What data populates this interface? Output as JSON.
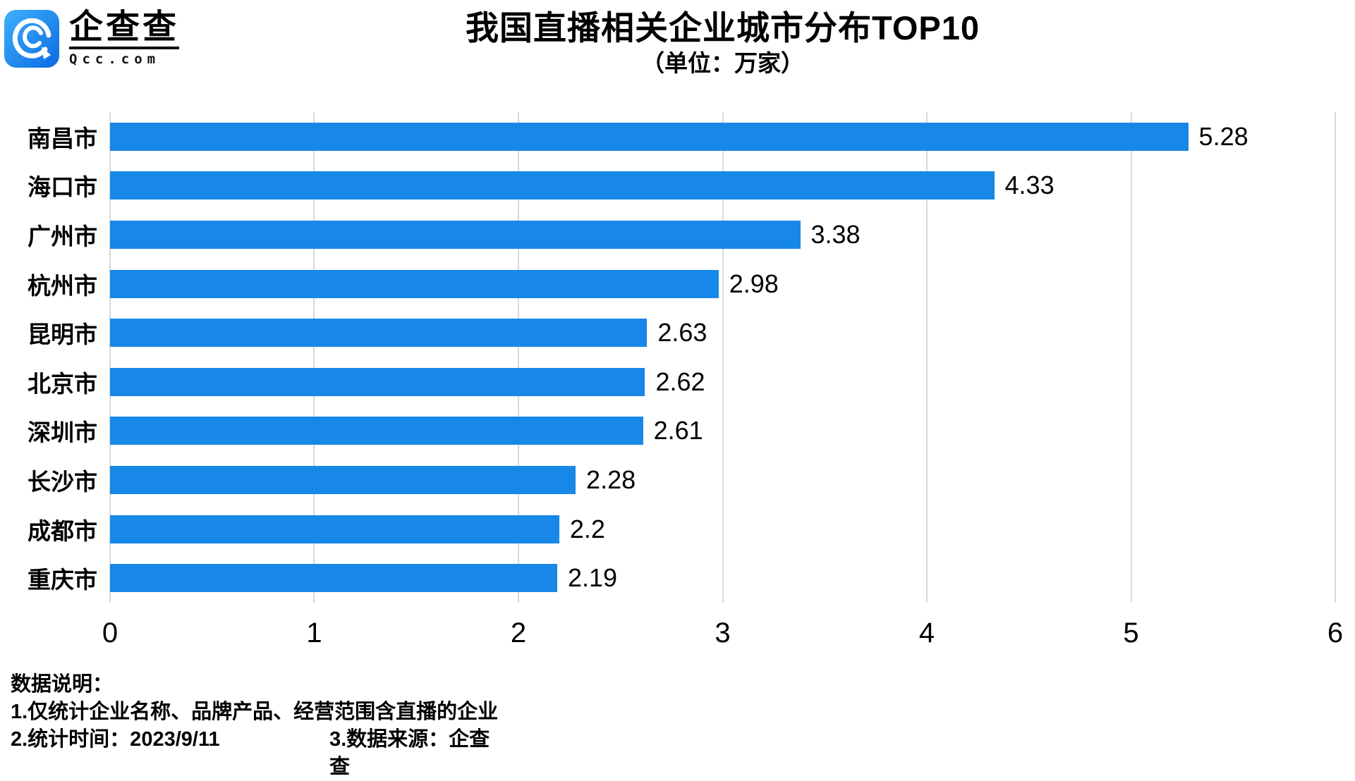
{
  "logo": {
    "brand": "企查查",
    "domain": "Qcc.com",
    "icon": "qcc-magnifier-icon"
  },
  "chart_data": {
    "type": "bar",
    "orientation": "horizontal",
    "title": "我国直播相关企业城市分布TOP10",
    "subtitle": "（单位：万家）",
    "categories": [
      "南昌市",
      "海口市",
      "广州市",
      "杭州市",
      "昆明市",
      "北京市",
      "深圳市",
      "长沙市",
      "成都市",
      "重庆市"
    ],
    "values": [
      5.28,
      4.33,
      3.38,
      2.98,
      2.63,
      2.62,
      2.61,
      2.28,
      2.2,
      2.19
    ],
    "value_labels": [
      "5.28",
      "4.33",
      "3.38",
      "2.98",
      "2.63",
      "2.62",
      "2.61",
      "2.28",
      "2.2",
      "2.19"
    ],
    "xlabel": "",
    "ylabel": "",
    "xlim": [
      0,
      6
    ],
    "xticks": [
      "0",
      "1",
      "2",
      "3",
      "4",
      "5",
      "6"
    ],
    "grid": "vertical",
    "legend": "none",
    "bar_color": "#1787e8",
    "grid_color": "#d9d9d9"
  },
  "footer": {
    "heading": "数据说明：",
    "note1": "1.仅统计企业名称、品牌产品、经营范围含直播的企业",
    "note2": "2.统计时间：2023/9/11",
    "note3": "3.数据来源：企查查"
  }
}
